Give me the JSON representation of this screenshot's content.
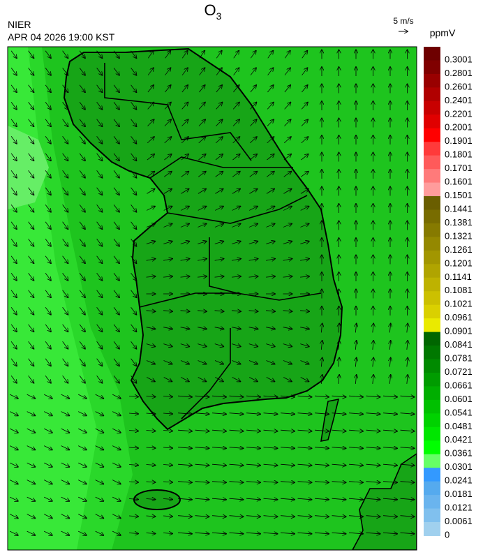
{
  "header": {
    "title": {
      "main": "O",
      "subscript": "3"
    },
    "source": "NIER",
    "datetime": "APR 04 2026 19:00 KST"
  },
  "wind_scale": {
    "label": "5 m/s"
  },
  "colorbar": {
    "unit": "ppmV",
    "labels": [
      "0.3001",
      "0.2801",
      "0.2601",
      "0.2401",
      "0.2201",
      "0.2001",
      "0.1901",
      "0.1801",
      "0.1701",
      "0.1601",
      "0.1501",
      "0.1441",
      "0.1381",
      "0.1321",
      "0.1261",
      "0.1201",
      "0.1141",
      "0.1081",
      "0.1021",
      "0.0961",
      "0.0901",
      "0.0841",
      "0.0781",
      "0.0721",
      "0.0661",
      "0.0601",
      "0.0541",
      "0.0481",
      "0.0421",
      "0.0361",
      "0.0301",
      "0.0241",
      "0.0181",
      "0.0121",
      "0.0061",
      "0"
    ],
    "colors": [
      "#6e0000",
      "#800000",
      "#990000",
      "#b00000",
      "#c80000",
      "#e00000",
      "#ff0000",
      "#ff3a3a",
      "#ff5a5a",
      "#ff7a7a",
      "#ff9c9c",
      "#6a5e00",
      "#786c00",
      "#867a00",
      "#948800",
      "#a29600",
      "#b0a400",
      "#beb200",
      "#ccc000",
      "#dad000",
      "#eaea00",
      "#006600",
      "#007800",
      "#008a00",
      "#009c00",
      "#00ae00",
      "#00c000",
      "#00d200",
      "#00e600",
      "#00ff00",
      "#66ff66",
      "#3399ff",
      "#55aaee",
      "#6ab4ee",
      "#80c0ee",
      "#a0d0ee"
    ]
  }
}
